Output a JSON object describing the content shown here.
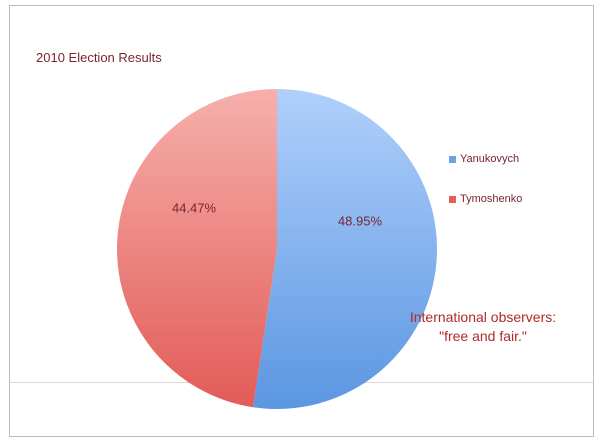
{
  "chart_data": {
    "type": "pie",
    "title": "2010 Election Results",
    "categories": [
      "Yanukovych",
      "Tymoshenko"
    ],
    "values": [
      48.95,
      44.47
    ],
    "data_labels": [
      "48.95%",
      "44.47%"
    ],
    "colors": [
      "#7fb0ea",
      "#ef7c77"
    ],
    "legend_position": "right"
  },
  "annotation": {
    "line1": "International observers:",
    "line2": "\"free and fair.\""
  }
}
